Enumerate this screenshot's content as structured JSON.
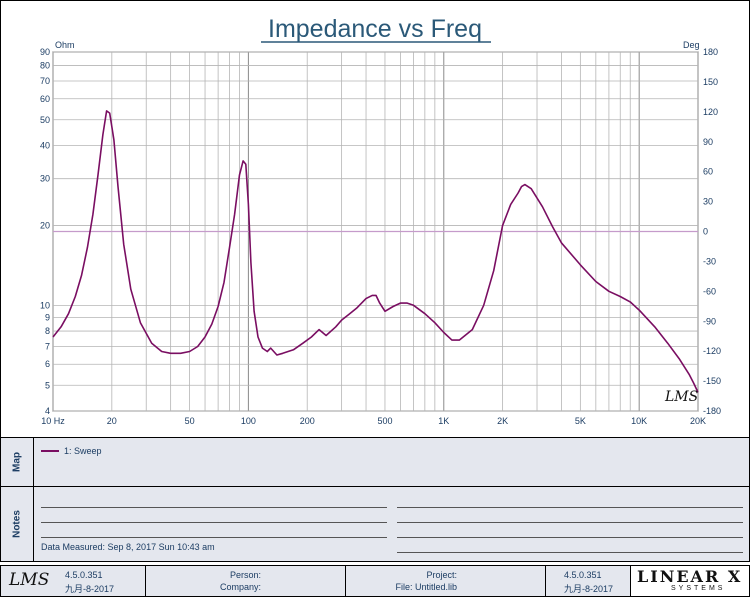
{
  "chart_data": {
    "type": "line",
    "title": "Impedance vs Freq",
    "ylabel_left": "Ohm",
    "ylabel_right": "Deg",
    "xscale": "log",
    "yscale_left": "log",
    "xlim": [
      10,
      20000
    ],
    "ylim_left": [
      4,
      90
    ],
    "ylim_right": [
      -180,
      180
    ],
    "x_tick_labels": [
      "10 Hz",
      "20",
      "50",
      "100",
      "200",
      "500",
      "1K",
      "2K",
      "5K",
      "10K",
      "20K"
    ],
    "x_tick_values": [
      10,
      20,
      50,
      100,
      200,
      500,
      1000,
      2000,
      5000,
      10000,
      20000
    ],
    "y_left_ticks": [
      90,
      80,
      70,
      60,
      50,
      40,
      30,
      20,
      10,
      9,
      8,
      7,
      6,
      5,
      4
    ],
    "y_right_ticks": [
      180,
      150,
      120,
      90,
      60,
      30,
      0,
      -30,
      -60,
      -90,
      -120,
      -150,
      -180
    ],
    "grid": true,
    "series": [
      {
        "name": "1: Sweep",
        "axis": "left",
        "color": "#7a0e62",
        "x": [
          10,
          11,
          12,
          13,
          14,
          15,
          16,
          17,
          18,
          18.8,
          19.5,
          20.5,
          21.5,
          23,
          25,
          28,
          32,
          36,
          40,
          45,
          50,
          55,
          60,
          65,
          70,
          75,
          80,
          85,
          90,
          94,
          97,
          100,
          103,
          107,
          112,
          118,
          125,
          130,
          140,
          150,
          170,
          190,
          210,
          230,
          250,
          280,
          300,
          330,
          360,
          400,
          430,
          450,
          470,
          500,
          550,
          600,
          650,
          700,
          800,
          900,
          1000,
          1100,
          1200,
          1400,
          1600,
          1800,
          2000,
          2200,
          2400,
          2500,
          2600,
          2800,
          3200,
          3600,
          4000,
          5000,
          6000,
          7000,
          8000,
          9000,
          10000,
          12000,
          14000,
          16000,
          18000,
          19000,
          20000
        ],
        "y": [
          7.6,
          8.3,
          9.3,
          10.8,
          13,
          16.5,
          22,
          31,
          44,
          54,
          53,
          42,
          28,
          17,
          11.5,
          8.6,
          7.2,
          6.7,
          6.6,
          6.6,
          6.7,
          7.0,
          7.6,
          8.5,
          9.9,
          12.2,
          16.5,
          22,
          31,
          35,
          34,
          24,
          14.5,
          9.5,
          7.6,
          6.9,
          6.7,
          6.9,
          6.5,
          6.6,
          6.8,
          7.2,
          7.6,
          8.1,
          7.7,
          8.3,
          8.8,
          9.3,
          9.8,
          10.6,
          10.9,
          10.9,
          10.2,
          9.5,
          9.9,
          10.2,
          10.2,
          10.0,
          9.3,
          8.6,
          7.9,
          7.4,
          7.4,
          8.1,
          10.0,
          13.5,
          20,
          24,
          26.5,
          28,
          28.5,
          27.5,
          23.5,
          19.8,
          17.2,
          14.2,
          12.3,
          11.3,
          10.8,
          10.3,
          9.6,
          8.3,
          7.2,
          6.3,
          5.5,
          5.1,
          4.7
        ]
      }
    ]
  },
  "legend": {
    "side_label": "Map",
    "entries": [
      "1: Sweep"
    ]
  },
  "notes": {
    "side_label": "Notes",
    "measured": "Data Measured: Sep 8, 2017 Sun 10:43 am"
  },
  "footer": {
    "logo": "LMS",
    "version": "4.5.0.351",
    "date": "九月-8-2017",
    "person_label": "Person:",
    "company_label": "Company:",
    "project_label": "Project:",
    "file_label": "File: Untitled.lib",
    "version_right": "4.5.0.351",
    "date_right": "九月-8-2017",
    "brand": "LINEAR X",
    "brand_sub": "SYSTEMS"
  },
  "colors": {
    "curve": "#7a0e62",
    "phase_zero_line": "#c59bcb",
    "label_blue": "#1c3d63",
    "title": "#2b5978",
    "panel_bg": "#e4e7ee"
  }
}
